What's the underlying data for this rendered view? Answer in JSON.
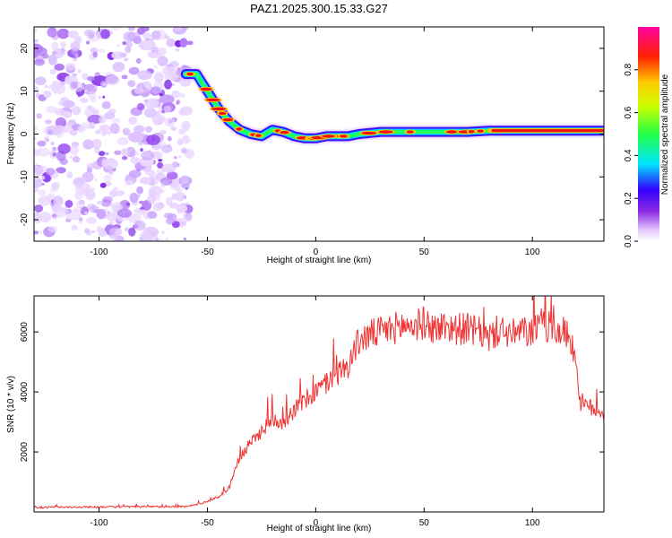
{
  "title": "PAZ1.2025.300.15.33.G27",
  "chart_data": [
    {
      "type": "heatmap",
      "xlabel": "Height of straight line (km)",
      "ylabel": "Frequency (Hz)",
      "xlim": [
        -130,
        133
      ],
      "ylim": [
        -25,
        25
      ],
      "xticks": [
        -100,
        -50,
        0,
        50,
        100
      ],
      "yticks": [
        -20,
        -10,
        0,
        10,
        20
      ],
      "xticklabels": [
        "-100",
        "-50",
        "0",
        "50",
        "100"
      ],
      "yticklabels": [
        "-20",
        "-10",
        "0",
        "10",
        "20"
      ],
      "noise_region_x": [
        -130,
        -58
      ],
      "ridge": {
        "x": [
          -60,
          -55,
          -50,
          -45,
          -40,
          -35,
          -30,
          -25,
          -20,
          -15,
          -10,
          -5,
          0,
          5,
          10,
          15,
          20,
          30,
          40,
          50,
          60,
          70,
          80,
          90,
          100,
          110,
          120,
          133
        ],
        "y": [
          14,
          14,
          10,
          6,
          3,
          1,
          0,
          -0.5,
          1,
          0.5,
          -0.5,
          -1,
          -1,
          -0.5,
          -0.5,
          -0.5,
          0,
          0.5,
          0.5,
          0.5,
          0.5,
          0.5,
          0.8,
          0.8,
          0.8,
          0.8,
          0.8,
          0.8
        ]
      },
      "colorbar": {
        "label": "Normalized spectral amplitude",
        "range": [
          0,
          1
        ],
        "ticks": [
          0.0,
          0.2,
          0.4,
          0.6,
          0.8
        ],
        "ticklabels": [
          "0.0",
          "0.2",
          "0.4",
          "0.6",
          "0.8"
        ]
      }
    },
    {
      "type": "line",
      "xlabel": "Height of straight line (km)",
      "ylabel": "SNR (10 * v/v)",
      "xlim": [
        -130,
        133
      ],
      "ylim": [
        0,
        7200
      ],
      "xticks": [
        -100,
        -50,
        0,
        50,
        100
      ],
      "yticks": [
        2000,
        4000,
        6000
      ],
      "xticklabels": [
        "-100",
        "-50",
        "0",
        "50",
        "100"
      ],
      "yticklabels": [
        "2000",
        "4000",
        "6000"
      ],
      "color": "#ee3333",
      "series": [
        {
          "x": [
            -130,
            -100,
            -60,
            -55,
            -50,
            -45,
            -40,
            -37,
            -35,
            -30,
            -25,
            -20,
            -15,
            -10,
            -5,
            0,
            5,
            10,
            15,
            18,
            20,
            25,
            30,
            35,
            40,
            45,
            50,
            55,
            60,
            65,
            70,
            75,
            80,
            85,
            90,
            95,
            100,
            105,
            110,
            115,
            118,
            120,
            122,
            125,
            130,
            133
          ],
          "y": [
            150,
            170,
            180,
            250,
            350,
            500,
            800,
            1500,
            1800,
            2300,
            2700,
            3100,
            3000,
            3400,
            3700,
            4000,
            4300,
            4600,
            4900,
            5400,
            5700,
            5900,
            6000,
            6100,
            6200,
            6200,
            6300,
            6100,
            6200,
            6100,
            6100,
            6000,
            5800,
            6100,
            5900,
            6000,
            6000,
            6300,
            6000,
            6000,
            5700,
            5100,
            3700,
            3500,
            3400,
            3300
          ]
        }
      ]
    }
  ]
}
